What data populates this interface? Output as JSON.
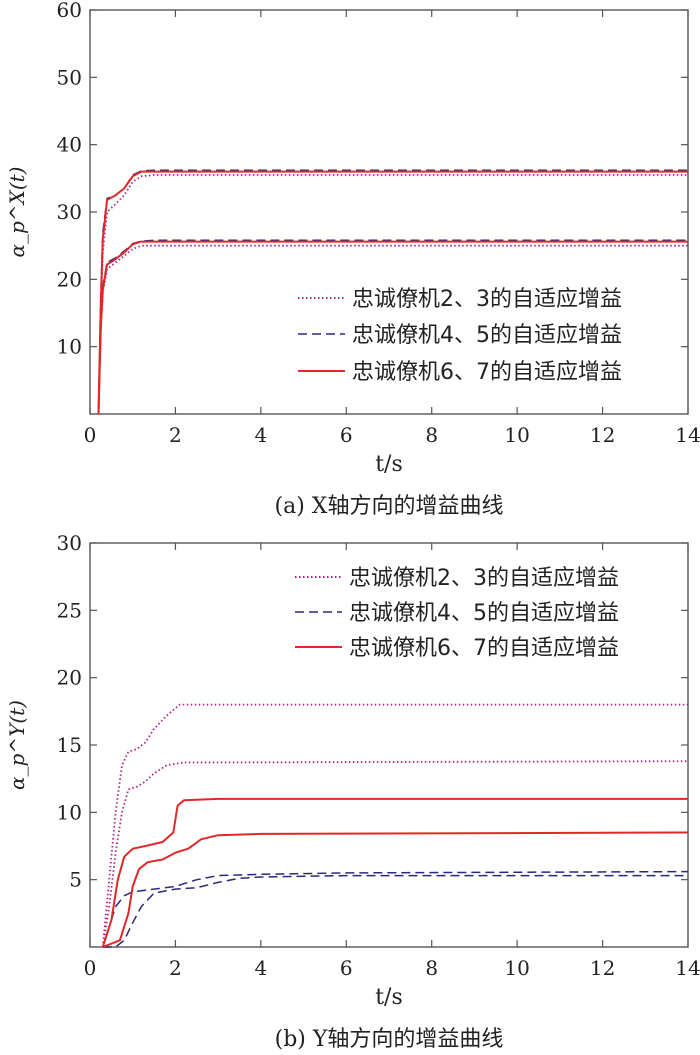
{
  "chart_data": [
    {
      "type": "line",
      "caption": "(a) X轴方向的增益曲线",
      "xlabel": "t/s",
      "ylabel": "α_p^X(t)",
      "xlim": [
        0,
        14
      ],
      "ylim": [
        0,
        60
      ],
      "xticks": [
        0,
        2,
        4,
        6,
        8,
        10,
        12,
        14
      ],
      "yticks": [
        10,
        20,
        30,
        40,
        50,
        60
      ],
      "legend_position": "middle-right",
      "series": [
        {
          "name": "忠诚僚机2、3的自适应增益",
          "style": "dotted",
          "color": "#b0208a",
          "lines": [
            [
              [
                0.2,
                0
              ],
              [
                0.25,
                15
              ],
              [
                0.3,
                24
              ],
              [
                0.4,
                30
              ],
              [
                0.6,
                31.2
              ],
              [
                0.8,
                32.5
              ],
              [
                1.0,
                34.5
              ],
              [
                1.2,
                35.3
              ],
              [
                1.5,
                35.5
              ],
              [
                14,
                35.5
              ]
            ],
            [
              [
                0.2,
                0
              ],
              [
                0.25,
                12
              ],
              [
                0.3,
                18
              ],
              [
                0.4,
                21.5
              ],
              [
                0.6,
                22.5
              ],
              [
                0.8,
                23.5
              ],
              [
                1.0,
                24.5
              ],
              [
                1.2,
                25
              ],
              [
                1.5,
                25
              ],
              [
                14,
                25
              ]
            ]
          ]
        },
        {
          "name": "忠诚僚机4、5的自适应增益",
          "style": "dashed",
          "color": "#2a2a7a",
          "lines": [
            [
              [
                0.2,
                0
              ],
              [
                0.25,
                17
              ],
              [
                0.3,
                27
              ],
              [
                0.4,
                32
              ],
              [
                0.6,
                32.5
              ],
              [
                0.8,
                33.5
              ],
              [
                1.0,
                35.5
              ],
              [
                1.2,
                36.1
              ],
              [
                1.5,
                36.2
              ],
              [
                14,
                36.2
              ]
            ],
            [
              [
                0.2,
                0
              ],
              [
                0.25,
                13
              ],
              [
                0.3,
                19
              ],
              [
                0.4,
                22.5
              ],
              [
                0.6,
                23.2
              ],
              [
                0.8,
                24.2
              ],
              [
                1.0,
                25.3
              ],
              [
                1.2,
                25.7
              ],
              [
                1.5,
                25.8
              ],
              [
                14,
                25.8
              ]
            ]
          ]
        },
        {
          "name": "忠诚僚机6、7的自适应增益",
          "style": "solid",
          "color": "#e02828",
          "lines": [
            [
              [
                0.2,
                0
              ],
              [
                0.25,
                16
              ],
              [
                0.3,
                26
              ],
              [
                0.4,
                31.8
              ],
              [
                0.6,
                32.5
              ],
              [
                0.8,
                33.5
              ],
              [
                1.0,
                35.3
              ],
              [
                1.2,
                36
              ],
              [
                1.5,
                36
              ],
              [
                14,
                36
              ]
            ],
            [
              [
                0.2,
                0
              ],
              [
                0.25,
                12.5
              ],
              [
                0.3,
                18.5
              ],
              [
                0.4,
                22.2
              ],
              [
                0.6,
                23
              ],
              [
                0.8,
                24
              ],
              [
                1.0,
                25.2
              ],
              [
                1.2,
                25.6
              ],
              [
                1.5,
                25.6
              ],
              [
                14,
                25.6
              ]
            ]
          ]
        }
      ]
    },
    {
      "type": "line",
      "caption": "(b) Y轴方向的增益曲线",
      "xlabel": "t/s",
      "ylabel": "α_p^Y(t)",
      "xlim": [
        0,
        14
      ],
      "ylim": [
        0,
        30
      ],
      "xticks": [
        0,
        2,
        4,
        6,
        8,
        10,
        12,
        14
      ],
      "yticks": [
        5,
        10,
        15,
        20,
        25,
        30
      ],
      "legend_position": "top-right",
      "series": [
        {
          "name": "忠诚僚机2、3的自适应增益",
          "style": "dotted",
          "color": "#b0208a",
          "lines": [
            [
              [
                0.3,
                0
              ],
              [
                0.45,
                5
              ],
              [
                0.6,
                10
              ],
              [
                0.75,
                13.5
              ],
              [
                0.9,
                14.5
              ],
              [
                1.1,
                14.7
              ],
              [
                1.3,
                15.2
              ],
              [
                1.5,
                16.2
              ],
              [
                1.8,
                17.2
              ],
              [
                2.1,
                18
              ],
              [
                14,
                18
              ]
            ],
            [
              [
                0.3,
                0
              ],
              [
                0.45,
                3
              ],
              [
                0.6,
                7
              ],
              [
                0.75,
                10
              ],
              [
                0.9,
                11.7
              ],
              [
                1.1,
                11.9
              ],
              [
                1.3,
                12.3
              ],
              [
                1.5,
                12.9
              ],
              [
                1.8,
                13.5
              ],
              [
                2.2,
                13.7
              ],
              [
                14,
                13.8
              ]
            ]
          ]
        },
        {
          "name": "忠诚僚机4、5的自适应增益",
          "style": "dashed",
          "color": "#2a2a7a",
          "lines": [
            [
              [
                0.3,
                0
              ],
              [
                0.45,
                1.5
              ],
              [
                0.6,
                3
              ],
              [
                0.8,
                3.8
              ],
              [
                1.0,
                4.1
              ],
              [
                1.5,
                4.3
              ],
              [
                2.0,
                4.5
              ],
              [
                2.5,
                5
              ],
              [
                3.0,
                5.3
              ],
              [
                4.0,
                5.4
              ],
              [
                6,
                5.5
              ],
              [
                14,
                5.6
              ]
            ],
            [
              [
                0.3,
                0
              ],
              [
                0.6,
                0
              ],
              [
                0.8,
                0.5
              ],
              [
                1.0,
                1.8
              ],
              [
                1.2,
                3
              ],
              [
                1.5,
                4
              ],
              [
                2.0,
                4.3
              ],
              [
                2.5,
                4.4
              ],
              [
                3.0,
                4.8
              ],
              [
                3.5,
                5.1
              ],
              [
                4.0,
                5.2
              ],
              [
                6,
                5.3
              ],
              [
                14,
                5.3
              ]
            ]
          ]
        },
        {
          "name": "忠诚僚机6、7的自适应增益",
          "style": "solid",
          "color": "#e02828",
          "lines": [
            [
              [
                0.3,
                0
              ],
              [
                0.5,
                2
              ],
              [
                0.65,
                5
              ],
              [
                0.8,
                6.7
              ],
              [
                1.0,
                7.3
              ],
              [
                1.3,
                7.5
              ],
              [
                1.7,
                7.8
              ],
              [
                1.95,
                8.5
              ],
              [
                2.05,
                10.5
              ],
              [
                2.2,
                10.9
              ],
              [
                3,
                11
              ],
              [
                14,
                11
              ]
            ],
            [
              [
                0.3,
                0
              ],
              [
                0.7,
                0.5
              ],
              [
                0.9,
                2.5
              ],
              [
                1.0,
                4.5
              ],
              [
                1.15,
                5.8
              ],
              [
                1.35,
                6.3
              ],
              [
                1.7,
                6.5
              ],
              [
                2.0,
                7
              ],
              [
                2.3,
                7.3
              ],
              [
                2.6,
                8
              ],
              [
                3,
                8.3
              ],
              [
                4,
                8.4
              ],
              [
                14,
                8.5
              ]
            ]
          ]
        }
      ]
    }
  ]
}
